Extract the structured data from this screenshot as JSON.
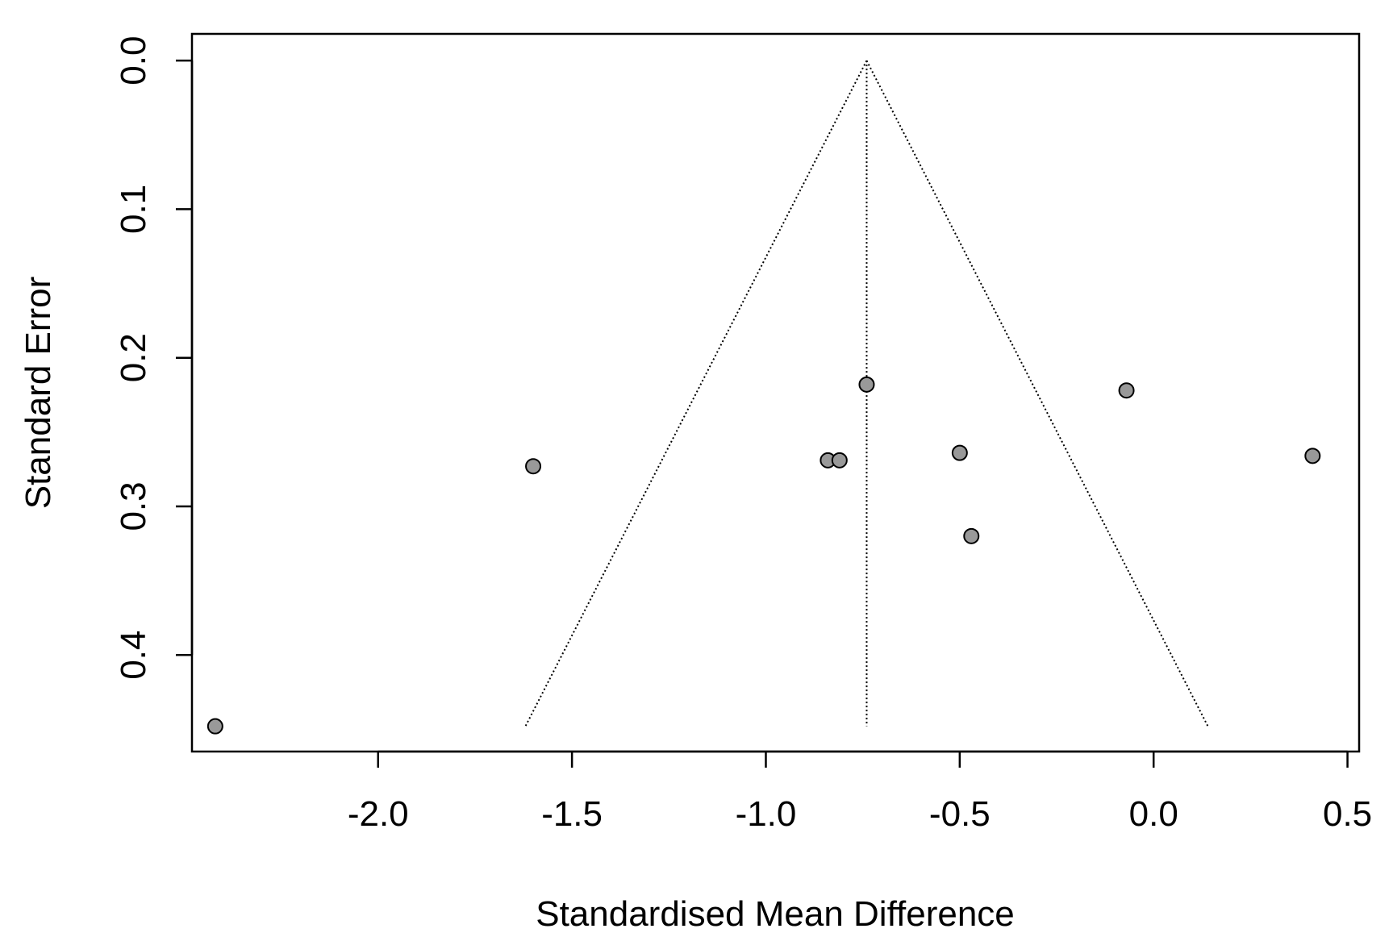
{
  "chart_data": {
    "type": "scatter",
    "subtype": "funnel-plot",
    "title": "",
    "xlabel": "Standardised Mean Difference",
    "ylabel": "Standard Error",
    "xlim": [
      -2.48,
      0.53
    ],
    "ylim": [
      0.465,
      -0.018
    ],
    "y_reversed": true,
    "x_ticks": [
      -2.0,
      -1.5,
      -1.0,
      -0.5,
      0.0,
      0.5
    ],
    "x_tick_labels": [
      "-2.0",
      "-1.5",
      "-1.0",
      "-0.5",
      "0.0",
      "0.5"
    ],
    "y_ticks": [
      0.0,
      0.1,
      0.2,
      0.3,
      0.4
    ],
    "y_tick_labels": [
      "0.0",
      "0.1",
      "0.2",
      "0.3",
      "0.4"
    ],
    "grid": false,
    "legend": "none",
    "pooled_estimate": -0.74,
    "funnel": {
      "apex": [
        -0.74,
        0.0
      ],
      "left_base": [
        -1.62,
        0.448
      ],
      "right_base": [
        0.14,
        0.448
      ],
      "line_style": "dotted"
    },
    "points": [
      {
        "x": -2.42,
        "y": 0.448
      },
      {
        "x": -1.6,
        "y": 0.273
      },
      {
        "x": -0.84,
        "y": 0.269
      },
      {
        "x": -0.81,
        "y": 0.269
      },
      {
        "x": -0.74,
        "y": 0.218
      },
      {
        "x": -0.5,
        "y": 0.264
      },
      {
        "x": -0.47,
        "y": 0.32
      },
      {
        "x": -0.07,
        "y": 0.222
      },
      {
        "x": 0.41,
        "y": 0.266
      }
    ],
    "colors": {
      "point_fill": "#999999",
      "point_stroke": "#000000",
      "axis": "#000000"
    }
  }
}
